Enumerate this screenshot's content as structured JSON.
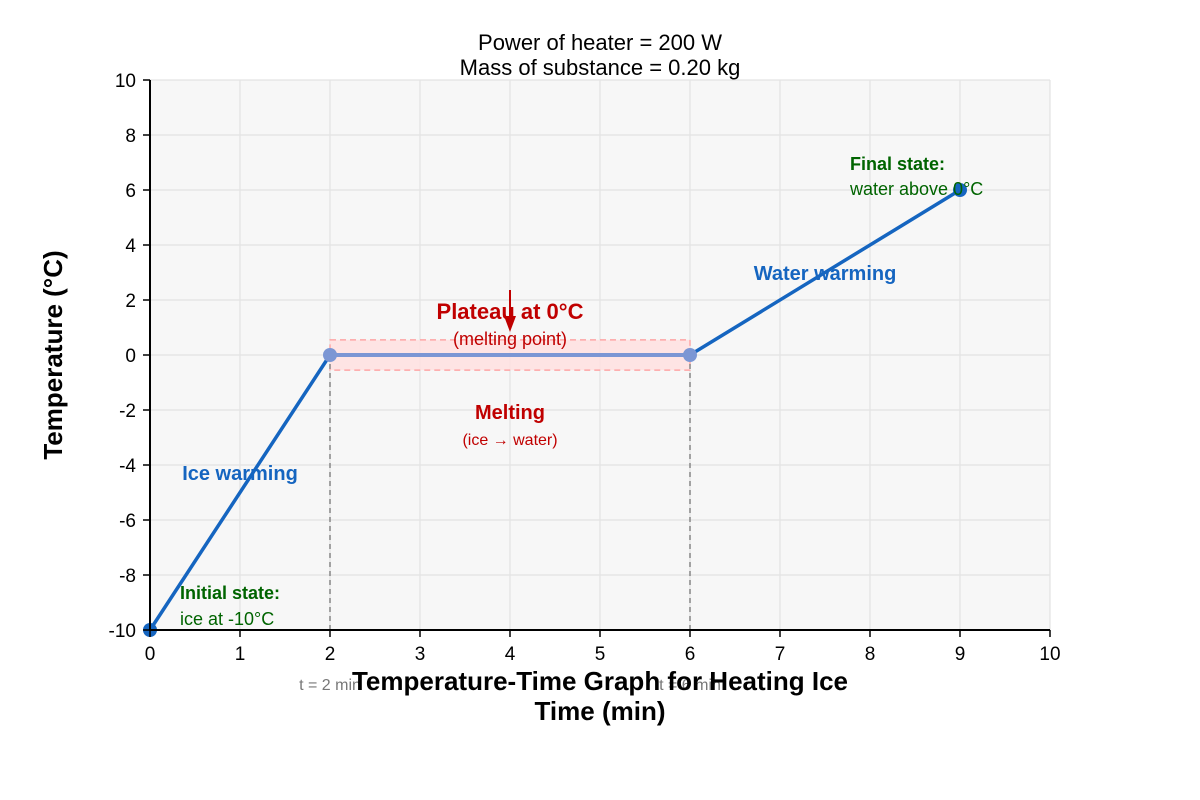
{
  "chart_data": {
    "type": "line",
    "subtitle_lines": [
      "Power of heater = 200 W",
      "Mass of substance = 0.20 kg"
    ],
    "title": "Temperature-Time Graph for Heating Ice",
    "xlabel": "Time (min)",
    "ylabel": "Temperature (°C)",
    "xlim": [
      0,
      10
    ],
    "ylim": [
      -10,
      10
    ],
    "x_ticks": [
      "0",
      "1",
      "2",
      "3",
      "4",
      "5",
      "6",
      "7",
      "8",
      "9",
      "10"
    ],
    "y_ticks": [
      "-10",
      "-8",
      "-6",
      "-4",
      "-2",
      "0",
      "2",
      "4",
      "6",
      "8",
      "10"
    ],
    "grid": true,
    "segments": [
      {
        "label": "Ice warming",
        "x": [
          0,
          2
        ],
        "y": [
          -10,
          0
        ],
        "color": "#1565c0"
      },
      {
        "label": "Melting",
        "x": [
          2,
          6
        ],
        "y": [
          0,
          0
        ],
        "color": "#7b96d4"
      },
      {
        "label": "Water warming",
        "x": [
          6,
          9
        ],
        "y": [
          0,
          6
        ],
        "color": "#1565c0"
      }
    ],
    "points": [
      {
        "x": 0,
        "y": -10,
        "color": "#1565c0"
      },
      {
        "x": 2,
        "y": 0,
        "color": "#7b96d4"
      },
      {
        "x": 6,
        "y": 0,
        "color": "#7b96d4"
      },
      {
        "x": 9,
        "y": 6,
        "color": "#1565c0"
      }
    ],
    "plateau_band": {
      "x": [
        2,
        6
      ],
      "y": [
        -0.55,
        0.55
      ]
    },
    "vertical_markers": [
      {
        "x": 2,
        "label": "t = 2 min"
      },
      {
        "x": 6,
        "label": "t = 6 min"
      }
    ],
    "annotations": {
      "ice_warming": "Ice warming",
      "water_warming": "Water warming",
      "plateau_title": "Plateau at 0°C",
      "plateau_sub": "(melting point)",
      "melting_title": "Melting",
      "melting_sub": "(ice → water)",
      "initial_title": "Initial state:",
      "initial_sub": "ice at -10°C",
      "final_title": "Final state:",
      "final_sub": "water above 0°C"
    },
    "colors": {
      "line": "#1565c0",
      "plateau_line": "#7b96d4",
      "red": "#c00000",
      "green": "#006400",
      "band_fill": "#ffdede",
      "band_stroke": "#ff9999"
    }
  }
}
